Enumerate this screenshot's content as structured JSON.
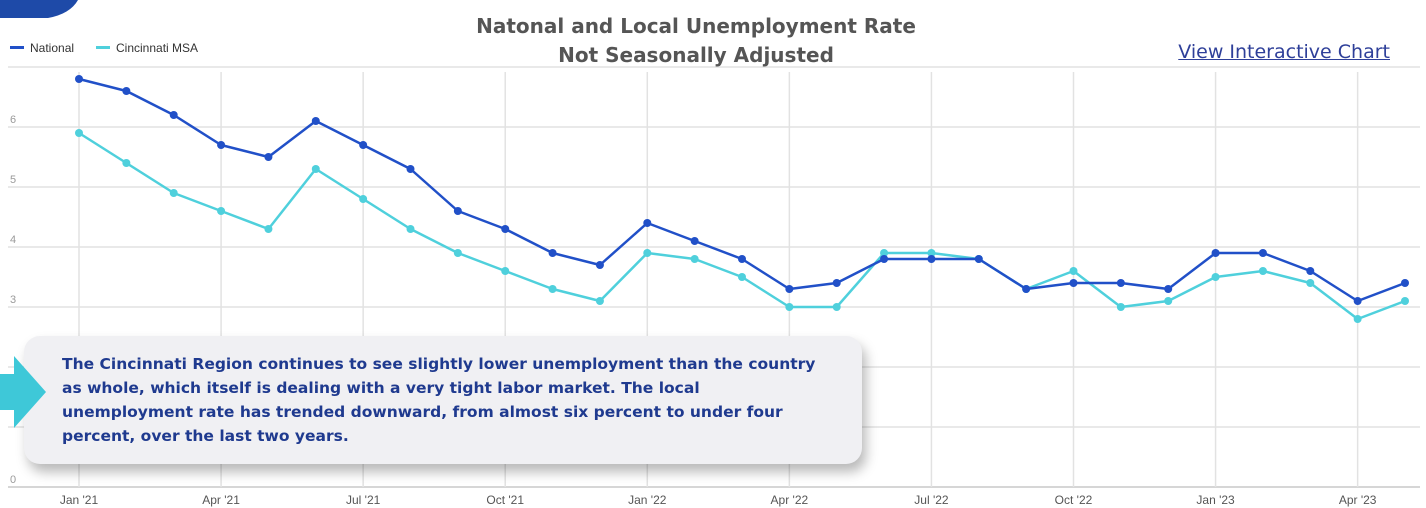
{
  "title": {
    "line1": "Natonal and Local Unemployment Rate",
    "line2": "Not Seasonally Adjusted"
  },
  "link": {
    "label": "View Interactive Chart"
  },
  "callout": {
    "text": "The Cincinnati Region continues to see slightly lower unemployment than the country as whole, which itself is dealing with a very tight labor market. The local unemployment rate has trended downward, from almost six percent to under four percent, over the last two years."
  },
  "colors": {
    "national": "#2150c8",
    "cincinnati": "#4fd0dc",
    "accent": "#3ec8d8",
    "badge": "#1e4aa8",
    "grid": "#e2e2e2"
  },
  "chart_data": {
    "type": "line",
    "title": "Natonal and Local Unemployment Rate Not Seasonally Adjusted",
    "xlabel": "",
    "ylabel": "",
    "ylim": [
      0,
      7
    ],
    "yticks": [
      0,
      3,
      4,
      5,
      6
    ],
    "grid": true,
    "legend": "top-left",
    "x": [
      "Jan '21",
      "Feb '21",
      "Mar '21",
      "Apr '21",
      "May '21",
      "Jun '21",
      "Jul '21",
      "Aug '21",
      "Sep '21",
      "Oct '21",
      "Nov '21",
      "Dec '21",
      "Jan '22",
      "Feb '22",
      "Mar '22",
      "Apr '22",
      "May '22",
      "Jun '22",
      "Jul '22",
      "Aug '22",
      "Sep '22",
      "Oct '22",
      "Nov '22",
      "Dec '22",
      "Jan '23",
      "Feb '23",
      "Mar '23",
      "Apr '23",
      "May '23"
    ],
    "xtick_labels": [
      "Jan '21",
      "Apr '21",
      "Jul '21",
      "Oct '21",
      "Jan '22",
      "Apr '22",
      "Jul '22",
      "Oct '22",
      "Jan '23",
      "Apr '23"
    ],
    "series": [
      {
        "name": "National",
        "color": "#2150c8",
        "values": [
          6.8,
          6.6,
          6.2,
          5.7,
          5.5,
          6.1,
          5.7,
          5.3,
          4.6,
          4.3,
          3.9,
          3.7,
          4.4,
          4.1,
          3.8,
          3.3,
          3.4,
          3.8,
          3.8,
          3.8,
          3.3,
          3.4,
          3.4,
          3.3,
          3.9,
          3.9,
          3.6,
          3.1,
          3.4
        ]
      },
      {
        "name": "Cincinnati MSA",
        "color": "#4fd0dc",
        "values": [
          5.9,
          5.4,
          4.9,
          4.6,
          4.3,
          5.3,
          4.8,
          4.3,
          3.9,
          3.6,
          3.3,
          3.1,
          3.9,
          3.8,
          3.5,
          3.0,
          3.0,
          3.9,
          3.9,
          3.8,
          3.3,
          3.6,
          3.0,
          3.1,
          3.5,
          3.6,
          3.4,
          2.8,
          3.1
        ]
      }
    ]
  }
}
